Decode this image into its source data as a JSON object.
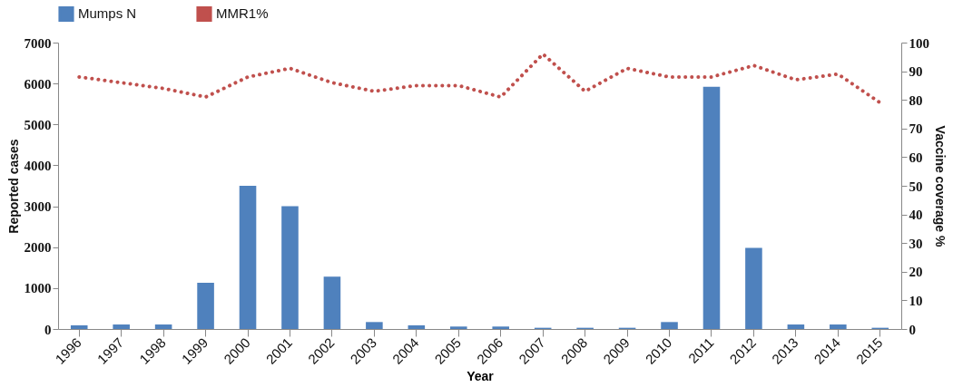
{
  "chart_data": {
    "type": "bar",
    "xlabel": "Year",
    "ylabel": "Reported cases",
    "y2label": "Vaccine coverage %",
    "categories": [
      "1996",
      "1997",
      "1998",
      "1999",
      "2000",
      "2001",
      "2002",
      "2003",
      "2004",
      "2005",
      "2006",
      "2007",
      "2008",
      "2009",
      "2010",
      "2011",
      "2012",
      "2013",
      "2014",
      "2015"
    ],
    "series": [
      {
        "name": "Mumps N",
        "color": "#4f81bd",
        "values": [
          90,
          110,
          110,
          1130,
          3500,
          3000,
          1280,
          170,
          90,
          60,
          60,
          30,
          30,
          30,
          170,
          5920,
          1980,
          110,
          110,
          30
        ]
      },
      {
        "name": "MMR1%",
        "type": "line",
        "axis": "y2",
        "color": "#c0504d",
        "line_style": "dotted",
        "values": [
          88,
          86,
          84,
          81,
          88,
          91,
          86,
          83,
          85,
          85,
          81,
          96,
          83,
          91,
          88,
          88,
          92,
          87,
          89,
          79
        ]
      }
    ],
    "ylim": [
      0,
      7000
    ],
    "yticks": [
      0,
      1000,
      2000,
      3000,
      4000,
      5000,
      6000,
      7000
    ],
    "y2lim": [
      0,
      100
    ],
    "y2ticks": [
      0,
      10,
      20,
      30,
      40,
      50,
      60,
      70,
      80,
      90,
      100
    ],
    "grid": false,
    "legend": "top"
  }
}
